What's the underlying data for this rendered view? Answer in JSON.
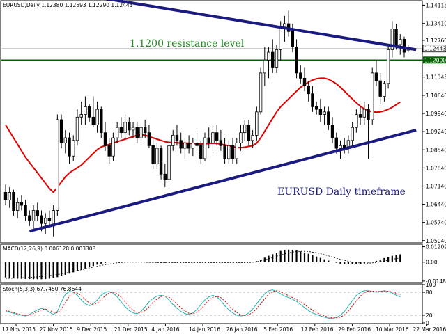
{
  "header": {
    "symbol_line": "EURUSD,Daily  1.12380 1.12593 1.12290 1.12443",
    "macd_label": "MACD(12,26,9) 0.006128 0.003308",
    "stoch_label": "Stoch(5,3,3) 67.7450 76.8644"
  },
  "annotations": {
    "resistance_text": "1.1200 resistance level",
    "timeframe_text": "EURUSD Daily timeframe"
  },
  "colors": {
    "bull_candle": "#ffffff",
    "bear_candle": "#000000",
    "moving_average": "#e00000",
    "trendline": "#1a1a80",
    "resistance_line": "#006400",
    "current_price_tag": "#ffffff",
    "macd_signal": "#000000",
    "stoch_main": "#20b2aa",
    "stoch_signal": "#e00000"
  },
  "chart_data": [
    {
      "type": "candlestick",
      "panel": "price",
      "ylim": [
        1.0498,
        1.1426
      ],
      "y_ticks": [
        "1.14115",
        "1.13410",
        "1.12760",
        "1.12000",
        "1.11345",
        "1.10640",
        "1.09940",
        "1.09240",
        "1.08540",
        "1.07840",
        "1.07140",
        "1.06440",
        "1.05740",
        "1.05040"
      ],
      "current_price": "1.12443",
      "resistance_level": "1.12000",
      "x_ticks": [
        "17 Nov 2015",
        "27 Nov 2015",
        "9 Dec 2015",
        "21 Dec 2015",
        "4 Jan 2016",
        "14 Jan 2016",
        "26 Jan 2016",
        "5 Feb 2016",
        "17 Feb 2016",
        "29 Feb 2016",
        "10 Mar 2016",
        "22 Mar 2016"
      ],
      "candles": [
        [
          1.069,
          1.072,
          1.064,
          1.066
        ],
        [
          1.066,
          1.071,
          1.063,
          1.069
        ],
        [
          1.069,
          1.07,
          1.06,
          1.062
        ],
        [
          1.062,
          1.067,
          1.059,
          1.065
        ],
        [
          1.065,
          1.068,
          1.062,
          1.064
        ],
        [
          1.064,
          1.066,
          1.058,
          1.06
        ],
        [
          1.06,
          1.062,
          1.056,
          1.058
        ],
        [
          1.058,
          1.064,
          1.055,
          1.062
        ],
        [
          1.062,
          1.065,
          1.058,
          1.06
        ],
        [
          1.06,
          1.062,
          1.054,
          1.057
        ],
        [
          1.057,
          1.061,
          1.053,
          1.059
        ],
        [
          1.059,
          1.062,
          1.056,
          1.058
        ],
        [
          1.056,
          1.064,
          1.052,
          1.062
        ],
        [
          1.062,
          1.099,
          1.06,
          1.097
        ],
        [
          1.097,
          1.099,
          1.086,
          1.088
        ],
        [
          1.088,
          1.093,
          1.084,
          1.09
        ],
        [
          1.09,
          1.092,
          1.08,
          1.083
        ],
        [
          1.083,
          1.091,
          1.081,
          1.089
        ],
        [
          1.089,
          1.101,
          1.087,
          1.098
        ],
        [
          1.098,
          1.104,
          1.095,
          1.099
        ],
        [
          1.099,
          1.106,
          1.095,
          1.102
        ],
        [
          1.102,
          1.103,
          1.096,
          1.098
        ],
        [
          1.098,
          1.106,
          1.094,
          1.095
        ],
        [
          1.095,
          1.104,
          1.092,
          1.101
        ],
        [
          1.101,
          1.102,
          1.09,
          1.092
        ],
        [
          1.092,
          1.096,
          1.085,
          1.087
        ],
        [
          1.087,
          1.09,
          1.08,
          1.083
        ],
        [
          1.083,
          1.092,
          1.081,
          1.09
        ],
        [
          1.09,
          1.096,
          1.088,
          1.094
        ],
        [
          1.094,
          1.098,
          1.09,
          1.092
        ],
        [
          1.092,
          1.099,
          1.09,
          1.096
        ],
        [
          1.096,
          1.098,
          1.091,
          1.093
        ],
        [
          1.093,
          1.096,
          1.09,
          1.094
        ],
        [
          1.094,
          1.096,
          1.088,
          1.09
        ],
        [
          1.09,
          1.096,
          1.088,
          1.094
        ],
        [
          1.094,
          1.097,
          1.09,
          1.092
        ],
        [
          1.092,
          1.095,
          1.086,
          1.087
        ],
        [
          1.087,
          1.09,
          1.078,
          1.08
        ],
        [
          1.08,
          1.088,
          1.078,
          1.086
        ],
        [
          1.086,
          1.087,
          1.074,
          1.076
        ],
        [
          1.076,
          1.08,
          1.071,
          1.074
        ],
        [
          1.074,
          1.089,
          1.072,
          1.087
        ],
        [
          1.087,
          1.093,
          1.085,
          1.091
        ],
        [
          1.091,
          1.095,
          1.087,
          1.089
        ],
        [
          1.089,
          1.092,
          1.084,
          1.086
        ],
        [
          1.086,
          1.09,
          1.082,
          1.088
        ],
        [
          1.088,
          1.091,
          1.084,
          1.086
        ],
        [
          1.086,
          1.09,
          1.083,
          1.088
        ],
        [
          1.088,
          1.092,
          1.085,
          1.087
        ],
        [
          1.087,
          1.089,
          1.08,
          1.082
        ],
        [
          1.082,
          1.092,
          1.081,
          1.09
        ],
        [
          1.09,
          1.094,
          1.086,
          1.088
        ],
        [
          1.088,
          1.094,
          1.085,
          1.092
        ],
        [
          1.092,
          1.095,
          1.087,
          1.089
        ],
        [
          1.089,
          1.093,
          1.085,
          1.087
        ],
        [
          1.087,
          1.09,
          1.08,
          1.082
        ],
        [
          1.082,
          1.089,
          1.08,
          1.087
        ],
        [
          1.087,
          1.09,
          1.08,
          1.082
        ],
        [
          1.082,
          1.09,
          1.08,
          1.088
        ],
        [
          1.088,
          1.095,
          1.085,
          1.092
        ],
        [
          1.092,
          1.097,
          1.089,
          1.095
        ],
        [
          1.095,
          1.097,
          1.087,
          1.089
        ],
        [
          1.089,
          1.093,
          1.086,
          1.091
        ],
        [
          1.091,
          1.102,
          1.089,
          1.1
        ],
        [
          1.1,
          1.117,
          1.099,
          1.115
        ],
        [
          1.115,
          1.125,
          1.11,
          1.12
        ],
        [
          1.12,
          1.125,
          1.113,
          1.123
        ],
        [
          1.123,
          1.128,
          1.115,
          1.117
        ],
        [
          1.117,
          1.126,
          1.115,
          1.124
        ],
        [
          1.124,
          1.135,
          1.12,
          1.132
        ],
        [
          1.132,
          1.137,
          1.127,
          1.134
        ],
        [
          1.134,
          1.139,
          1.129,
          1.131
        ],
        [
          1.131,
          1.134,
          1.123,
          1.125
        ],
        [
          1.125,
          1.128,
          1.113,
          1.115
        ],
        [
          1.115,
          1.118,
          1.111,
          1.113
        ],
        [
          1.113,
          1.117,
          1.108,
          1.11
        ],
        [
          1.11,
          1.112,
          1.104,
          1.107
        ],
        [
          1.107,
          1.11,
          1.1,
          1.102
        ],
        [
          1.102,
          1.104,
          1.099,
          1.101
        ],
        [
          1.101,
          1.105,
          1.096,
          1.099
        ],
        [
          1.099,
          1.102,
          1.095,
          1.1
        ],
        [
          1.1,
          1.102,
          1.093,
          1.095
        ],
        [
          1.095,
          1.098,
          1.088,
          1.09
        ],
        [
          1.09,
          1.092,
          1.084,
          1.086
        ],
        [
          1.086,
          1.089,
          1.082,
          1.087
        ],
        [
          1.087,
          1.09,
          1.084,
          1.086
        ],
        [
          1.086,
          1.091,
          1.084,
          1.089
        ],
        [
          1.089,
          1.096,
          1.087,
          1.094
        ],
        [
          1.094,
          1.101,
          1.092,
          1.099
        ],
        [
          1.099,
          1.102,
          1.095,
          1.098
        ],
        [
          1.098,
          1.104,
          1.095,
          1.101
        ],
        [
          1.101,
          1.103,
          1.082,
          1.097
        ],
        [
          1.097,
          1.117,
          1.095,
          1.115
        ],
        [
          1.115,
          1.12,
          1.11,
          1.112
        ],
        [
          1.112,
          1.115,
          1.103,
          1.106
        ],
        [
          1.106,
          1.112,
          1.104,
          1.111
        ],
        [
          1.111,
          1.126,
          1.109,
          1.124
        ],
        [
          1.124,
          1.135,
          1.121,
          1.132
        ],
        [
          1.132,
          1.134,
          1.124,
          1.126
        ],
        [
          1.126,
          1.13,
          1.122,
          1.128
        ],
        [
          1.128,
          1.129,
          1.121,
          1.123
        ],
        [
          1.1238,
          1.1259,
          1.1229,
          1.1244
        ]
      ],
      "moving_average": [
        1.095,
        1.0925,
        1.09,
        1.0875,
        1.085,
        1.0825,
        1.0805,
        1.0785,
        1.0765,
        1.0745,
        1.0725,
        1.0705,
        1.069,
        1.071,
        1.073,
        1.075,
        1.0765,
        1.0775,
        1.0785,
        1.0795,
        1.081,
        1.0825,
        1.084,
        1.0855,
        1.0865,
        1.087,
        1.0875,
        1.088,
        1.0885,
        1.089,
        1.0895,
        1.09,
        1.0905,
        1.091,
        1.0912,
        1.091,
        1.0905,
        1.09,
        1.0895,
        1.089,
        1.0885,
        1.0883,
        1.0882,
        1.0881,
        1.088,
        1.088,
        1.0879,
        1.0878,
        1.0877,
        1.0876,
        1.0877,
        1.0878,
        1.0879,
        1.0878,
        1.0876,
        1.0873,
        1.087,
        1.0866,
        1.0863,
        1.0862,
        1.0864,
        1.0867,
        1.087,
        1.088,
        1.09,
        1.0925,
        1.095,
        1.0975,
        1.1,
        1.102,
        1.1035,
        1.105,
        1.1065,
        1.108,
        1.1095,
        1.1105,
        1.1115,
        1.1123,
        1.1128,
        1.113,
        1.113,
        1.1126,
        1.1118,
        1.1108,
        1.1095,
        1.108,
        1.1065,
        1.105,
        1.1035,
        1.1022,
        1.1012,
        1.1005,
        1.1,
        1.0999,
        1.1,
        1.1004,
        1.101,
        1.1018,
        1.1028,
        1.1038
      ],
      "trendlines": [
        {
          "name": "upper",
          "from": [
            0,
            1.15
          ],
          "to": [
            103,
            1.124
          ]
        },
        {
          "name": "lower",
          "from": [
            6,
            1.054
          ],
          "to": [
            103,
            1.093
          ]
        }
      ]
    },
    {
      "type": "bar",
      "panel": "MACD(12,26,9)",
      "ylim": [
        -0.016,
        0.0135
      ],
      "y_ticks": [
        "0.012095",
        "0.00",
        "-0.014865"
      ],
      "histogram": [
        -0.012,
        -0.0125,
        -0.0128,
        -0.013,
        -0.0131,
        -0.0132,
        -0.0133,
        -0.0134,
        -0.0134,
        -0.0134,
        -0.0133,
        -0.013,
        -0.0125,
        -0.0118,
        -0.011,
        -0.01,
        -0.009,
        -0.008,
        -0.007,
        -0.006,
        -0.005,
        -0.004,
        -0.003,
        -0.002,
        -0.0012,
        -0.0006,
        -0.0002,
        0.0,
        0.0002,
        0.0003,
        0.0003,
        0.0002,
        0.0001,
        0.0,
        -0.0001,
        -0.0002,
        -0.0003,
        -0.0004,
        -0.0005,
        -0.0006,
        -0.0006,
        -0.0005,
        -0.0004,
        -0.0003,
        -0.0003,
        -0.0003,
        -0.0003,
        -0.0003,
        -0.0003,
        -0.0003,
        -0.0003,
        -0.0003,
        -0.0003,
        -0.0003,
        -0.0003,
        -0.0003,
        -0.0003,
        -0.0003,
        -0.0003,
        -0.0003,
        -0.0003,
        -0.0002,
        0.0001,
        0.0008,
        0.002,
        0.0035,
        0.005,
        0.0062,
        0.0075,
        0.0088,
        0.0095,
        0.0098,
        0.0097,
        0.0092,
        0.0085,
        0.0076,
        0.0066,
        0.0055,
        0.0044,
        0.0033,
        0.0022,
        0.0012,
        0.0003,
        -0.0005,
        -0.0012,
        -0.0016,
        -0.0018,
        -0.0018,
        -0.0016,
        -0.0013,
        -0.0009,
        -0.0004,
        0.0002,
        0.001,
        0.002,
        0.0032,
        0.0042,
        0.005,
        0.0056,
        0.0061
      ],
      "signal": [
        -0.0128,
        -0.0127,
        -0.0126,
        -0.0125,
        -0.0124,
        -0.0122,
        -0.012,
        -0.0118,
        -0.0116,
        -0.0113,
        -0.011,
        -0.0106,
        -0.0102,
        -0.0097,
        -0.0092,
        -0.0086,
        -0.008,
        -0.0074,
        -0.0067,
        -0.006,
        -0.0053,
        -0.0046,
        -0.0039,
        -0.0032,
        -0.0026,
        -0.002,
        -0.0015,
        -0.001,
        -0.0006,
        -0.0003,
        -0.0001,
        0.0,
        0.0,
        0.0,
        -0.0001,
        -0.0001,
        -0.0002,
        -0.0002,
        -0.0003,
        -0.0003,
        -0.0004,
        -0.0004,
        -0.0004,
        -0.0004,
        -0.0004,
        -0.0004,
        -0.0004,
        -0.0004,
        -0.0004,
        -0.0004,
        -0.0004,
        -0.0004,
        -0.0004,
        -0.0004,
        -0.0004,
        -0.0004,
        -0.0004,
        -0.0004,
        -0.0004,
        -0.0004,
        -0.0004,
        -0.0003,
        -0.0001,
        0.0003,
        0.0009,
        0.0017,
        0.0026,
        0.0036,
        0.0046,
        0.0056,
        0.0065,
        0.0073,
        0.0079,
        0.0083,
        0.0085,
        0.0085,
        0.0083,
        0.0079,
        0.0073,
        0.0066,
        0.0058,
        0.0049,
        0.004,
        0.0031,
        0.0022,
        0.0014,
        0.0007,
        0.0001,
        -0.0004,
        -0.0007,
        -0.0008,
        -0.0008,
        -0.0006,
        -0.0003,
        0.0002,
        0.0008,
        0.0015,
        0.0022,
        0.0028,
        0.0033
      ]
    },
    {
      "type": "line",
      "panel": "Stoch(5,3,3)",
      "ylim": [
        0,
        100
      ],
      "y_ticks": [
        "100",
        "80",
        "20",
        "0"
      ],
      "levels": [
        80,
        20
      ],
      "main": [
        30,
        28,
        25,
        22,
        20,
        18,
        22,
        28,
        34,
        38,
        35,
        28,
        22,
        30,
        55,
        75,
        82,
        80,
        72,
        60,
        50,
        45,
        50,
        60,
        72,
        80,
        82,
        78,
        68,
        55,
        42,
        32,
        26,
        24,
        30,
        42,
        55,
        64,
        70,
        72,
        70,
        60,
        48,
        38,
        30,
        24,
        22,
        26,
        35,
        48,
        60,
        68,
        72,
        68,
        58,
        45,
        34,
        26,
        20,
        18,
        20,
        26,
        36,
        50,
        64,
        76,
        84,
        86,
        82,
        76,
        70,
        66,
        62,
        56,
        48,
        40,
        32,
        26,
        22,
        18,
        15,
        12,
        12,
        14,
        20,
        30,
        44,
        58,
        72,
        80,
        84,
        84,
        82,
        80,
        82,
        84,
        82,
        78,
        72,
        68
      ],
      "signal": [
        33,
        30,
        27,
        24,
        21,
        20,
        20,
        24,
        29,
        34,
        36,
        33,
        28,
        26,
        36,
        53,
        70,
        79,
        78,
        71,
        61,
        52,
        48,
        52,
        61,
        71,
        78,
        80,
        76,
        67,
        55,
        43,
        33,
        27,
        27,
        32,
        42,
        54,
        63,
        69,
        71,
        67,
        59,
        49,
        39,
        31,
        25,
        24,
        28,
        36,
        48,
        59,
        67,
        69,
        66,
        57,
        46,
        35,
        27,
        21,
        19,
        21,
        27,
        37,
        50,
        63,
        75,
        82,
        84,
        81,
        76,
        71,
        66,
        61,
        55,
        48,
        40,
        33,
        27,
        22,
        18,
        15,
        13,
        13,
        15,
        21,
        31,
        44,
        58,
        70,
        79,
        83,
        83,
        82,
        82,
        82,
        83,
        81,
        77,
        73
      ]
    }
  ]
}
